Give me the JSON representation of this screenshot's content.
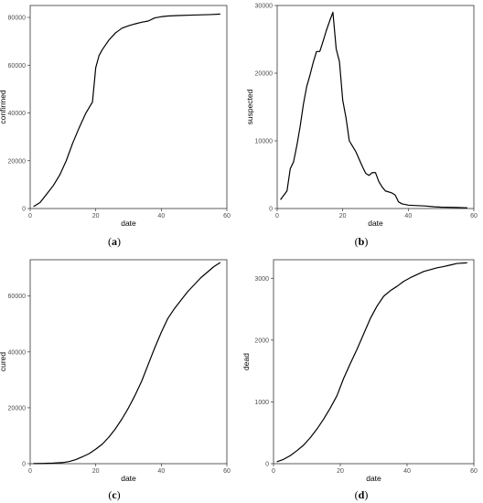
{
  "chart_data": [
    {
      "type": "line",
      "caption": "a",
      "xlabel": "date",
      "ylabel": "confirmed",
      "xlim": [
        0,
        60
      ],
      "ylim": [
        0,
        85000
      ],
      "xticks": [
        0,
        20,
        40,
        60
      ],
      "yticks": [
        0,
        20000,
        40000,
        60000,
        80000
      ],
      "color": "#000000",
      "x": [
        1,
        3,
        5,
        7,
        9,
        11,
        13,
        15,
        17,
        19,
        20,
        21,
        22,
        23,
        24,
        26,
        28,
        30,
        32,
        34,
        36,
        38,
        40,
        42,
        45,
        50,
        55,
        58
      ],
      "y": [
        800,
        2500,
        6000,
        9500,
        14000,
        20000,
        27500,
        34000,
        40000,
        44600,
        59000,
        64000,
        66500,
        68500,
        70500,
        73500,
        75500,
        76500,
        77300,
        78000,
        78500,
        79800,
        80300,
        80600,
        80800,
        81000,
        81200,
        81400
      ]
    },
    {
      "type": "line",
      "caption": "b",
      "xlabel": "date",
      "ylabel": "suspected",
      "xlim": [
        0,
        60
      ],
      "ylim": [
        0,
        30000
      ],
      "xticks": [
        0,
        20,
        40,
        60
      ],
      "yticks": [
        0,
        10000,
        20000,
        30000
      ],
      "color": "#000000",
      "x": [
        1,
        3,
        4,
        5,
        6,
        7,
        8,
        9,
        10,
        11,
        12,
        13,
        14,
        15,
        16,
        17,
        18,
        19,
        20,
        21,
        22,
        23,
        24,
        25,
        26,
        27,
        28,
        29,
        30,
        31,
        32,
        33,
        35,
        36,
        37,
        38,
        40,
        42,
        45,
        48,
        50,
        55,
        58
      ],
      "y": [
        1300,
        2600,
        5900,
        6900,
        9300,
        12100,
        15400,
        18000,
        19700,
        21600,
        23200,
        23200,
        24700,
        26300,
        27700,
        29000,
        23600,
        21700,
        16000,
        13400,
        10000,
        9200,
        8400,
        7300,
        6200,
        5200,
        4900,
        5300,
        5300,
        4000,
        3200,
        2600,
        2300,
        2000,
        1000,
        700,
        500,
        450,
        380,
        250,
        200,
        150,
        100
      ]
    },
    {
      "type": "line",
      "caption": "c",
      "xlabel": "date",
      "ylabel": "cured",
      "xlim": [
        0,
        60
      ],
      "ylim": [
        0,
        73000
      ],
      "xticks": [
        0,
        20,
        40,
        60
      ],
      "yticks": [
        0,
        20000,
        40000,
        60000
      ],
      "color": "#000000",
      "x": [
        1,
        4,
        7,
        10,
        12,
        14,
        16,
        18,
        20,
        22,
        24,
        26,
        28,
        30,
        32,
        34,
        36,
        38,
        40,
        42,
        44,
        46,
        48,
        50,
        52,
        54,
        56,
        58
      ],
      "y": [
        30,
        80,
        200,
        400,
        800,
        1500,
        2500,
        3600,
        5200,
        7000,
        9500,
        12500,
        16000,
        20000,
        24500,
        29500,
        35500,
        41500,
        47000,
        52000,
        55500,
        58500,
        61500,
        64000,
        66500,
        68500,
        70500,
        72000
      ]
    },
    {
      "type": "line",
      "caption": "d",
      "xlabel": "date",
      "ylabel": "dead",
      "xlim": [
        0,
        60
      ],
      "ylim": [
        0,
        3300
      ],
      "xticks": [
        0,
        20,
        40,
        60
      ],
      "yticks": [
        0,
        1000,
        2000,
        3000
      ],
      "color": "#000000",
      "x": [
        1,
        3,
        5,
        7,
        9,
        11,
        13,
        15,
        17,
        19,
        21,
        23,
        25,
        27,
        29,
        31,
        33,
        35,
        37,
        39,
        41,
        43,
        45,
        47,
        49,
        51,
        53,
        55,
        58
      ],
      "y": [
        30,
        70,
        130,
        210,
        300,
        420,
        560,
        720,
        900,
        1100,
        1380,
        1620,
        1850,
        2100,
        2350,
        2550,
        2710,
        2800,
        2870,
        2950,
        3010,
        3060,
        3110,
        3140,
        3170,
        3190,
        3215,
        3240,
        3250
      ]
    }
  ]
}
